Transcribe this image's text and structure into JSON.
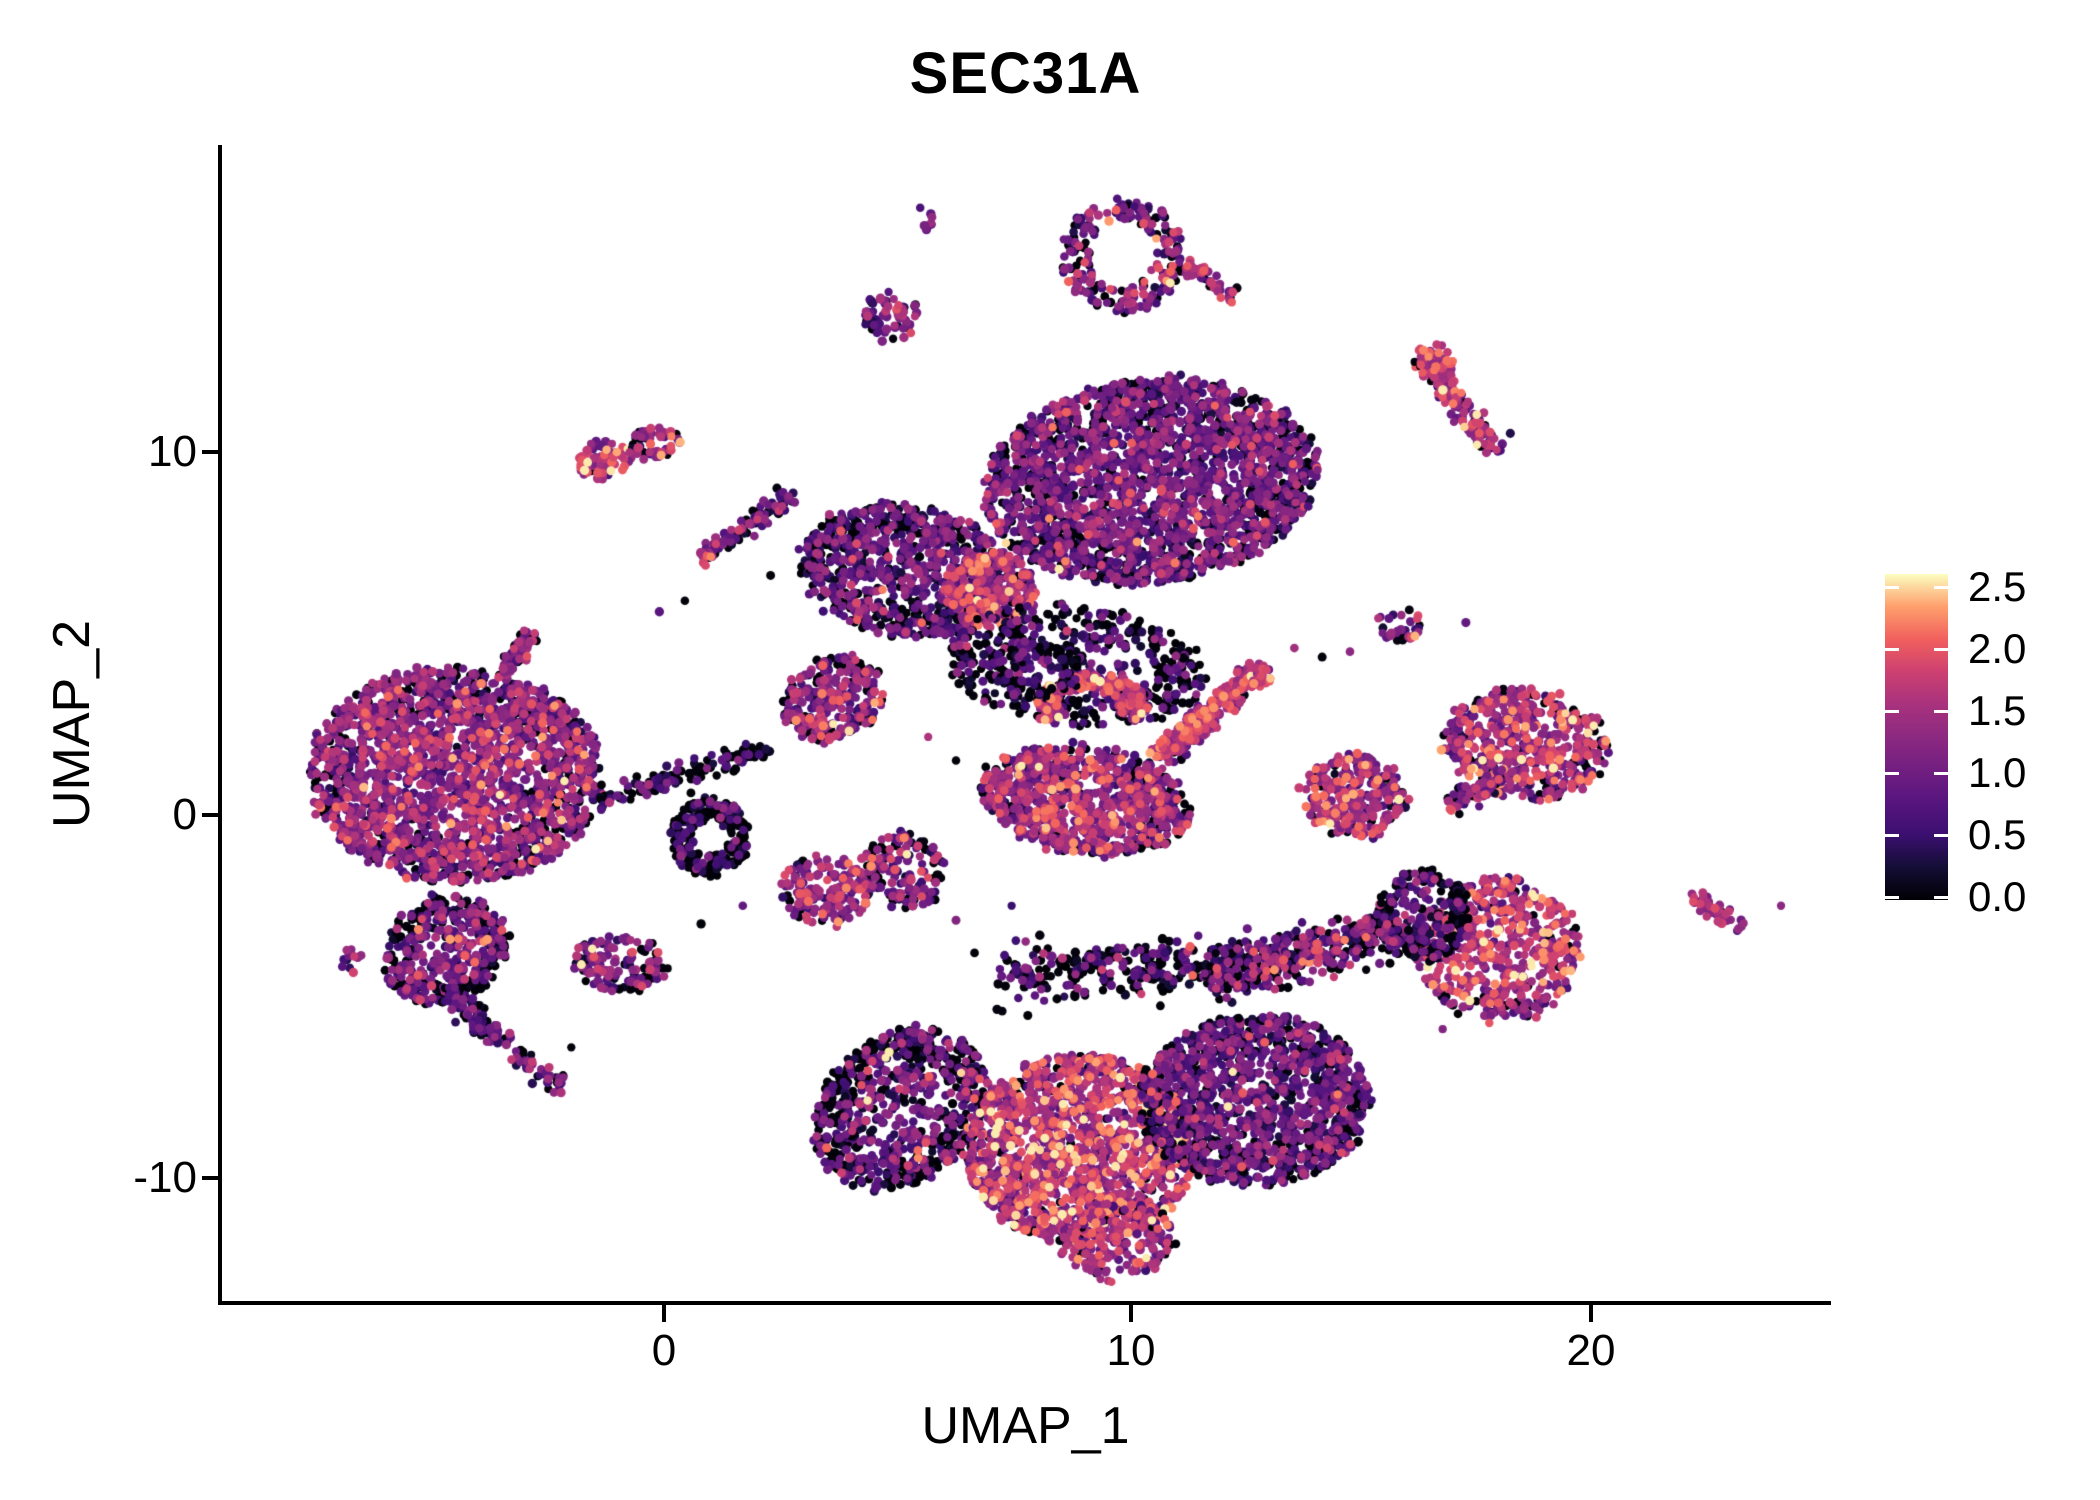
{
  "chart_data": {
    "type": "scatter",
    "title": "SEC31A",
    "xlabel": "UMAP_1",
    "ylabel": "UMAP_2",
    "x_tick_labels": [
      "0",
      "10",
      "20"
    ],
    "x_tick_values": [
      0,
      10,
      20
    ],
    "y_tick_labels": [
      "10",
      "0",
      "-10"
    ],
    "y_tick_values": [
      10,
      0,
      -10
    ],
    "x_range": [
      -9.5,
      25.1
    ],
    "y_range": [
      -13.4,
      18.5
    ],
    "grid": false,
    "background": "#ffffff",
    "axis_color": "#000000",
    "point_radius_px": 4.4,
    "color_scale": {
      "name": "magma",
      "domain": [
        0,
        2.6
      ],
      "legend_tick_values": [
        2.5,
        2.0,
        1.5,
        1.0,
        0.5,
        0.0
      ],
      "legend_labels": [
        "2.5",
        "2.0",
        "1.5",
        "1.0",
        "0.5",
        "0.0"
      ],
      "stops": [
        [
          0.0,
          "#000004"
        ],
        [
          0.1,
          "#140e36"
        ],
        [
          0.2,
          "#3b0f70"
        ],
        [
          0.3,
          "#57157e"
        ],
        [
          0.4,
          "#721f81"
        ],
        [
          0.5,
          "#8c2981"
        ],
        [
          0.6,
          "#a8327d"
        ],
        [
          0.7,
          "#cd4071"
        ],
        [
          0.8,
          "#f1605d"
        ],
        [
          0.9,
          "#fe9f6d"
        ],
        [
          1.0,
          "#fcfdbf"
        ]
      ]
    },
    "clusters": [
      {
        "name": "left-main",
        "type": "blob",
        "cx": -4.5,
        "cy": 1.1,
        "rx": 3.15,
        "ry": 2.95,
        "rot": -8,
        "n": 2200,
        "mean": 1.15,
        "sd": 0.5,
        "black": 0.14
      },
      {
        "name": "left-lower-lobe",
        "type": "blob",
        "cx": -4.7,
        "cy": -3.7,
        "rx": 1.25,
        "ry": 1.6,
        "rot": -30,
        "n": 420,
        "mean": 0.9,
        "sd": 0.5,
        "black": 0.3
      },
      {
        "name": "left-tail-upper",
        "type": "streak",
        "x1": -4.7,
        "y1": -4.9,
        "x2": -3.4,
        "y2": -6.3,
        "w": 0.3,
        "n": 90,
        "mean": 0.7,
        "sd": 0.45,
        "black": 0.3
      },
      {
        "name": "left-tail-lower",
        "type": "streak",
        "x1": -3.3,
        "y1": -6.5,
        "x2": -2.2,
        "y2": -7.6,
        "w": 0.26,
        "n": 45,
        "mean": 0.8,
        "sd": 0.5,
        "black": 0.3
      },
      {
        "name": "left-satellite-dots",
        "type": "blob",
        "cx": -6.7,
        "cy": -4.0,
        "rx": 0.28,
        "ry": 0.35,
        "rot": 0,
        "n": 12,
        "mean": 1.1,
        "sd": 0.6,
        "black": 0.2
      },
      {
        "name": "left-upper-satellite",
        "type": "streak",
        "x1": -2.78,
        "y1": 5.04,
        "x2": -3.5,
        "y2": 3.88,
        "w": 0.25,
        "n": 52,
        "mean": 1.2,
        "sd": 0.45,
        "black": 0.18
      },
      {
        "name": "black-ring",
        "type": "ring",
        "cx": 1.0,
        "cy": -0.6,
        "rx": 0.85,
        "ry": 1.05,
        "inner": 0.45,
        "a0": 0,
        "a1": 360,
        "n": 230,
        "mean": 0.55,
        "sd": 0.45,
        "black": 0.6
      },
      {
        "name": "mid-small-west",
        "type": "blob",
        "cx": 3.5,
        "cy": -2.1,
        "rx": 1.0,
        "ry": 0.9,
        "rot": -10,
        "n": 175,
        "mean": 1.3,
        "sd": 0.45,
        "black": 0.08
      },
      {
        "name": "mid-small-east",
        "type": "blob",
        "cx": 5.2,
        "cy": -1.5,
        "rx": 0.85,
        "ry": 1.1,
        "rot": 20,
        "n": 150,
        "mean": 1.1,
        "sd": 0.6,
        "black": 0.2
      },
      {
        "name": "mid-small-south",
        "type": "blob",
        "cx": -0.95,
        "cy": -4.1,
        "rx": 1.05,
        "ry": 0.78,
        "rot": -12,
        "n": 140,
        "mean": 1.05,
        "sd": 0.55,
        "black": 0.2
      },
      {
        "name": "topleft-orange",
        "type": "blob",
        "cx": -1.3,
        "cy": 9.8,
        "rx": 0.6,
        "ry": 0.56,
        "rot": 0,
        "n": 72,
        "mean": 1.55,
        "sd": 0.42,
        "black": 0.07
      },
      {
        "name": "topleft-pink",
        "type": "blob",
        "cx": -0.2,
        "cy": 10.25,
        "rx": 0.55,
        "ry": 0.42,
        "rot": 0,
        "n": 55,
        "mean": 1.25,
        "sd": 0.45,
        "black": 0.1
      },
      {
        "name": "upper-diag-streak",
        "type": "streak",
        "x1": 2.8,
        "y1": 8.8,
        "x2": 0.85,
        "y2": 7.15,
        "w": 0.26,
        "n": 95,
        "mean": 0.95,
        "sd": 0.5,
        "black": 0.27
      },
      {
        "name": "upper-diag-tip",
        "type": "blob",
        "cx": 0.85,
        "cy": 7.1,
        "rx": 0.2,
        "ry": 0.2,
        "rot": 0,
        "n": 10,
        "mean": 1.7,
        "sd": 0.3,
        "black": 0
      },
      {
        "name": "bridge-chain",
        "type": "streak",
        "x1": -1.4,
        "y1": 0.4,
        "x2": 2.4,
        "y2": 1.85,
        "w": 0.3,
        "n": 135,
        "mean": 0.5,
        "sd": 0.4,
        "black": 0.5
      },
      {
        "name": "bridge-neck",
        "type": "blob",
        "cx": 3.65,
        "cy": 3.2,
        "rx": 1.0,
        "ry": 1.25,
        "rot": -35,
        "n": 270,
        "mean": 1.15,
        "sd": 0.55,
        "black": 0.18
      },
      {
        "name": "top-main",
        "type": "blob",
        "cx": 10.5,
        "cy": 9.2,
        "rx": 3.6,
        "ry": 2.8,
        "rot": 12,
        "n": 2400,
        "mean": 0.85,
        "sd": 0.5,
        "black": 0.16
      },
      {
        "name": "top-left-arm",
        "type": "blob",
        "cx": 5.2,
        "cy": 6.75,
        "rx": 2.3,
        "ry": 1.8,
        "rot": -18,
        "n": 850,
        "mean": 0.78,
        "sd": 0.48,
        "black": 0.22
      },
      {
        "name": "top-hot-patch",
        "type": "blob",
        "cx": 7.0,
        "cy": 6.2,
        "rx": 1.05,
        "ry": 1.05,
        "rot": 0,
        "n": 260,
        "mean": 1.5,
        "sd": 0.45,
        "black": 0.05
      },
      {
        "name": "top-under-scatter",
        "type": "blob",
        "cx": 8.9,
        "cy": 4.1,
        "rx": 2.8,
        "ry": 1.65,
        "rot": -8,
        "n": 440,
        "mean": 0.55,
        "sd": 0.45,
        "black": 0.38
      },
      {
        "name": "tiny-top-dots",
        "type": "blob",
        "cx": 5.7,
        "cy": 16.4,
        "rx": 0.22,
        "ry": 0.3,
        "rot": 0,
        "n": 9,
        "mean": 0.9,
        "sd": 0.4,
        "black": 0.15
      },
      {
        "name": "top-small-blob",
        "type": "blob",
        "cx": 4.9,
        "cy": 13.7,
        "rx": 0.58,
        "ry": 0.68,
        "rot": 0,
        "n": 70,
        "mean": 0.95,
        "sd": 0.5,
        "black": 0.15
      },
      {
        "name": "top-ring",
        "type": "ring",
        "cx": 9.9,
        "cy": 15.4,
        "rx": 1.3,
        "ry": 1.6,
        "inner": 0.55,
        "a0": 0,
        "a1": 360,
        "n": 215,
        "mean": 1.1,
        "sd": 0.55,
        "black": 0.22
      },
      {
        "name": "top-ring-tail",
        "type": "streak",
        "x1": 11.3,
        "y1": 15.2,
        "x2": 12.3,
        "y2": 14.2,
        "w": 0.22,
        "n": 45,
        "mean": 1.4,
        "sd": 0.35,
        "black": 0.1
      },
      {
        "name": "wing-body",
        "type": "blob",
        "cx": 9.1,
        "cy": 0.4,
        "rx": 2.3,
        "ry": 1.45,
        "rot": -14,
        "n": 950,
        "mean": 1.3,
        "sd": 0.5,
        "black": 0.13
      },
      {
        "name": "wing-arc",
        "type": "ring",
        "cx": 9.2,
        "cy": 3.0,
        "rx": 1.2,
        "ry": 0.95,
        "inner": 0.5,
        "a0": -30,
        "a1": 210,
        "n": 230,
        "mean": 1.55,
        "sd": 0.4,
        "black": 0.07
      },
      {
        "name": "wing-arm",
        "type": "streak",
        "x1": 10.7,
        "y1": 1.6,
        "x2": 12.8,
        "y2": 4.0,
        "w": 0.3,
        "n": 330,
        "mean": 1.5,
        "sd": 0.4,
        "black": 0.08
      },
      {
        "name": "wing-arm-tip",
        "type": "blob",
        "cx": 12.9,
        "cy": 3.8,
        "rx": 0.25,
        "ry": 0.3,
        "rot": 0,
        "n": 25,
        "mean": 1.7,
        "sd": 0.3,
        "black": 0.05
      },
      {
        "name": "wing-upper-scatter",
        "type": "blob",
        "cx": 8.0,
        "cy": 4.0,
        "rx": 1.0,
        "ry": 0.85,
        "rot": 0,
        "n": 100,
        "mean": 0.5,
        "sd": 0.4,
        "black": 0.42
      },
      {
        "name": "right-mid-small",
        "type": "blob",
        "cx": 14.9,
        "cy": 0.55,
        "rx": 1.15,
        "ry": 1.15,
        "rot": 0,
        "n": 270,
        "mean": 1.45,
        "sd": 0.5,
        "black": 0.1
      },
      {
        "name": "right-mid-main",
        "type": "blob",
        "cx": 18.6,
        "cy": 1.95,
        "rx": 1.8,
        "ry": 1.5,
        "rot": -12,
        "n": 520,
        "mean": 1.4,
        "sd": 0.5,
        "black": 0.1
      },
      {
        "name": "right-mid-tail",
        "type": "streak",
        "x1": 18.1,
        "y1": 1.1,
        "x2": 16.9,
        "y2": 0.15,
        "w": 0.26,
        "n": 60,
        "mean": 1.1,
        "sd": 0.5,
        "black": 0.22
      },
      {
        "name": "right-tiny",
        "type": "blob",
        "cx": 15.9,
        "cy": 5.2,
        "rx": 0.45,
        "ry": 0.45,
        "rot": 0,
        "n": 34,
        "mean": 1.1,
        "sd": 0.5,
        "black": 0.2
      },
      {
        "name": "right-elongated",
        "type": "streak",
        "x1": 16.4,
        "y1": 12.7,
        "x2": 17.9,
        "y2": 10.0,
        "w": 0.35,
        "n": 150,
        "mean": 1.3,
        "sd": 0.5,
        "black": 0.13
      },
      {
        "name": "right-elongated-top",
        "type": "blob",
        "cx": 16.6,
        "cy": 12.5,
        "rx": 0.45,
        "ry": 0.5,
        "rot": 0,
        "n": 35,
        "mean": 1.7,
        "sd": 0.35,
        "black": 0.05
      },
      {
        "name": "botright-main",
        "type": "blob",
        "cx": 18.0,
        "cy": -3.7,
        "rx": 1.75,
        "ry": 2.0,
        "rot": 8,
        "n": 560,
        "mean": 1.5,
        "sd": 0.45,
        "black": 0.1
      },
      {
        "name": "botright-west-scatter",
        "type": "blob",
        "cx": 16.4,
        "cy": -2.75,
        "rx": 1.0,
        "ry": 1.25,
        "rot": 0,
        "n": 220,
        "mean": 0.65,
        "sd": 0.5,
        "black": 0.4
      },
      {
        "name": "far-right-streak",
        "type": "streak",
        "x1": 22.2,
        "y1": -2.2,
        "x2": 23.2,
        "y2": -3.1,
        "w": 0.22,
        "n": 45,
        "mean": 1.4,
        "sd": 0.4,
        "black": 0.1
      },
      {
        "name": "bottom-west-lobe",
        "type": "blob",
        "cx": 5.1,
        "cy": -8.1,
        "rx": 1.75,
        "ry": 2.35,
        "rot": -25,
        "n": 720,
        "mean": 0.8,
        "sd": 0.55,
        "black": 0.34
      },
      {
        "name": "bottom-center",
        "type": "blob",
        "cx": 9.0,
        "cy": -9.2,
        "rx": 2.5,
        "ry": 2.6,
        "rot": 0,
        "n": 1550,
        "mean": 1.55,
        "sd": 0.5,
        "black": 0.08
      },
      {
        "name": "bottom-east-lobe",
        "type": "blob",
        "cx": 12.75,
        "cy": -7.85,
        "rx": 2.5,
        "ry": 2.35,
        "rot": 10,
        "n": 1350,
        "mean": 0.8,
        "sd": 0.5,
        "black": 0.2
      },
      {
        "name": "bottom-top-band",
        "type": "streak",
        "x1": 7.25,
        "y1": -4.4,
        "x2": 13.9,
        "y2": -4.0,
        "w": 0.75,
        "n": 380,
        "mean": 0.7,
        "sd": 0.5,
        "black": 0.36
      },
      {
        "name": "bottom-ne-arm",
        "type": "streak",
        "x1": 11.8,
        "y1": -4.5,
        "x2": 15.8,
        "y2": -3.1,
        "w": 0.65,
        "n": 320,
        "mean": 1.0,
        "sd": 0.55,
        "black": 0.27
      },
      {
        "name": "bottom-tip",
        "type": "blob",
        "cx": 9.8,
        "cy": -11.8,
        "rx": 1.3,
        "ry": 1.0,
        "rot": 15,
        "n": 180,
        "mean": 1.45,
        "sd": 0.45,
        "black": 0.12
      }
    ],
    "sparse_points": [
      [
        6.3,
        -2.9,
        1.2
      ],
      [
        6.7,
        -3.8,
        0.03
      ],
      [
        7.5,
        -2.5,
        0.5
      ],
      [
        13.6,
        4.6,
        1.5
      ],
      [
        14.2,
        4.35,
        0.03
      ],
      [
        14.8,
        4.5,
        1.3
      ],
      [
        6.3,
        1.5,
        0.03
      ],
      [
        5.7,
        2.15,
        1.6
      ],
      [
        17.3,
        5.3,
        0.9
      ],
      [
        24.1,
        -2.5,
        1.3
      ],
      [
        -2.0,
        -6.4,
        0.03
      ],
      [
        0.8,
        -3.0,
        0.03
      ],
      [
        1.7,
        -2.5,
        0.9
      ],
      [
        0.45,
        5.9,
        0.03
      ],
      [
        -0.1,
        5.6,
        0.8
      ],
      [
        2.3,
        6.6,
        0.03
      ],
      [
        3.1,
        7.4,
        1.2
      ],
      [
        12.4,
        -5.6,
        0.03
      ],
      [
        15.9,
        -1.8,
        0.6
      ],
      [
        16.8,
        -5.9,
        1.2
      ],
      [
        13.9,
        8.5,
        0.7
      ],
      [
        14.1,
        9.5,
        1.2
      ]
    ]
  }
}
